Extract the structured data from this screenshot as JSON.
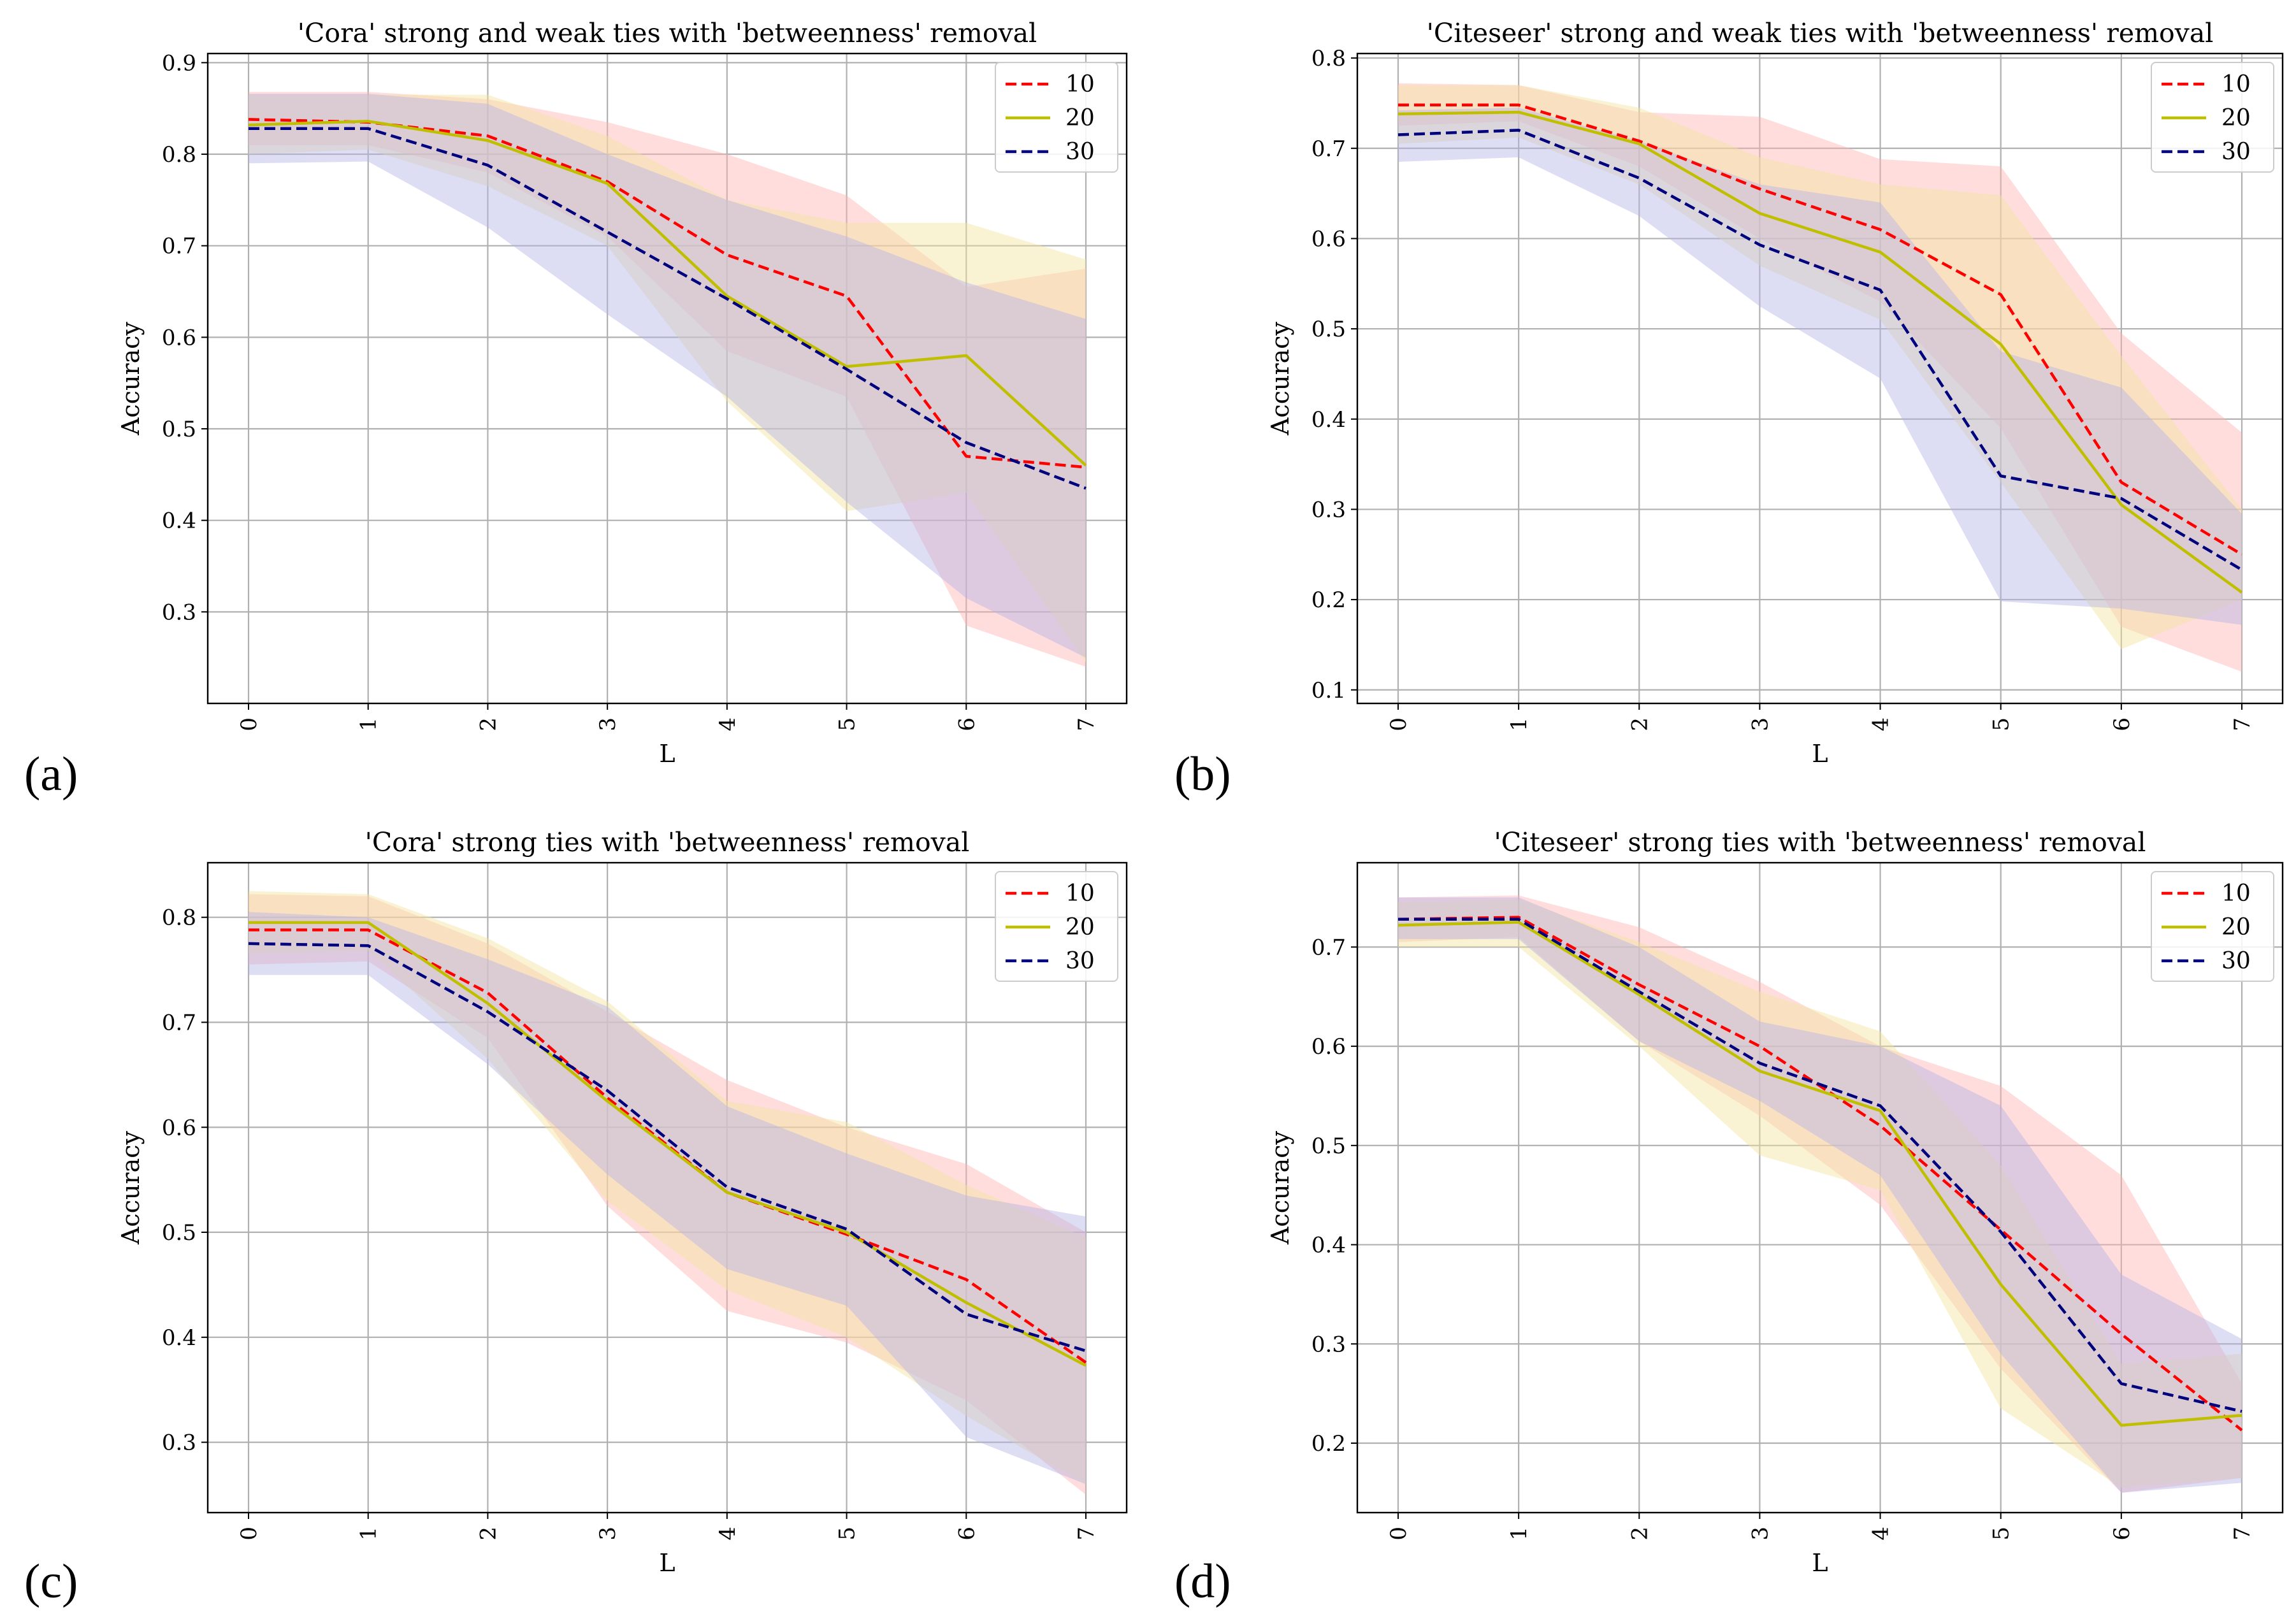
{
  "figure": {
    "panel_labels": [
      "(a)",
      "(b)",
      "(c)",
      "(d)"
    ]
  },
  "colors": {
    "10": "#ff0000",
    "20": "#bfbf00",
    "30": "#00007f",
    "band_10": "#ffb3b3",
    "band_20": "#f2e5a0",
    "band_30": "#b3b3e6"
  },
  "chart_data": [
    {
      "type": "line",
      "title": "'Cora' strong and weak ties with 'betweenness' removal",
      "xlabel": "L",
      "ylabel": "Accuracy",
      "x": [
        0,
        1,
        2,
        3,
        4,
        5,
        6,
        7
      ],
      "xticks": [
        "0",
        "1",
        "2",
        "3",
        "4",
        "5",
        "6",
        "7"
      ],
      "ylim": [
        0.2,
        0.91
      ],
      "yticks": [
        0.3,
        0.4,
        0.5,
        0.6,
        0.7,
        0.8,
        0.9
      ],
      "ytick_labels": [
        "0.3",
        "0.4",
        "0.5",
        "0.6",
        "0.7",
        "0.8",
        "0.9"
      ],
      "legend": "top-right",
      "series": [
        {
          "name": "10",
          "style": "dashed",
          "values": [
            0.838,
            0.835,
            0.82,
            0.77,
            0.69,
            0.645,
            0.47,
            0.458
          ],
          "lower": [
            0.81,
            0.81,
            0.78,
            0.71,
            0.585,
            0.535,
            0.285,
            0.24
          ],
          "upper": [
            0.868,
            0.868,
            0.86,
            0.835,
            0.8,
            0.755,
            0.655,
            0.675
          ]
        },
        {
          "name": "20",
          "style": "solid",
          "values": [
            0.832,
            0.836,
            0.815,
            0.768,
            0.645,
            0.568,
            0.58,
            0.46
          ],
          "lower": [
            0.8,
            0.805,
            0.765,
            0.7,
            0.53,
            0.41,
            0.43,
            0.245
          ],
          "upper": [
            0.865,
            0.865,
            0.865,
            0.82,
            0.75,
            0.725,
            0.725,
            0.685
          ]
        },
        {
          "name": "30",
          "style": "dashed",
          "values": [
            0.828,
            0.828,
            0.788,
            0.715,
            0.642,
            0.565,
            0.485,
            0.435
          ],
          "lower": [
            0.79,
            0.792,
            0.72,
            0.625,
            0.535,
            0.42,
            0.315,
            0.25
          ],
          "upper": [
            0.866,
            0.866,
            0.855,
            0.8,
            0.75,
            0.71,
            0.66,
            0.62
          ]
        }
      ]
    },
    {
      "type": "line",
      "title": "'Citeseer' strong and weak ties with 'betweenness' removal",
      "xlabel": "L",
      "ylabel": "Accuracy",
      "x": [
        0,
        1,
        2,
        3,
        4,
        5,
        6,
        7
      ],
      "xticks": [
        "0",
        "1",
        "2",
        "3",
        "4",
        "5",
        "6",
        "7"
      ],
      "ylim": [
        0.085,
        0.805
      ],
      "yticks": [
        0.1,
        0.2,
        0.3,
        0.4,
        0.5,
        0.6,
        0.7,
        0.8
      ],
      "ytick_labels": [
        "0.1",
        "0.2",
        "0.3",
        "0.4",
        "0.5",
        "0.6",
        "0.7",
        "0.8"
      ],
      "legend": "top-right",
      "series": [
        {
          "name": "10",
          "style": "dashed",
          "values": [
            0.748,
            0.748,
            0.708,
            0.655,
            0.61,
            0.538,
            0.33,
            0.25
          ],
          "lower": [
            0.725,
            0.73,
            0.68,
            0.6,
            0.53,
            0.39,
            0.17,
            0.12
          ],
          "upper": [
            0.772,
            0.77,
            0.74,
            0.735,
            0.688,
            0.68,
            0.495,
            0.385
          ]
        },
        {
          "name": "20",
          "style": "solid",
          "values": [
            0.738,
            0.74,
            0.705,
            0.628,
            0.585,
            0.483,
            0.305,
            0.208
          ],
          "lower": [
            0.705,
            0.712,
            0.66,
            0.57,
            0.51,
            0.33,
            0.145,
            0.2
          ],
          "upper": [
            0.77,
            0.77,
            0.745,
            0.69,
            0.66,
            0.648,
            0.47,
            0.3
          ]
        },
        {
          "name": "30",
          "style": "dashed",
          "values": [
            0.715,
            0.72,
            0.667,
            0.593,
            0.543,
            0.337,
            0.312,
            0.233
          ],
          "lower": [
            0.685,
            0.69,
            0.625,
            0.525,
            0.445,
            0.198,
            0.19,
            0.172
          ],
          "upper": [
            0.742,
            0.745,
            0.708,
            0.66,
            0.64,
            0.475,
            0.435,
            0.295
          ]
        }
      ]
    },
    {
      "type": "line",
      "title": "'Cora' strong ties with 'betweenness' removal",
      "xlabel": "L",
      "ylabel": "Accuracy",
      "x": [
        0,
        1,
        2,
        3,
        4,
        5,
        6,
        7
      ],
      "xticks": [
        "0",
        "1",
        "2",
        "3",
        "4",
        "5",
        "6",
        "7"
      ],
      "ylim": [
        0.233,
        0.852
      ],
      "yticks": [
        0.3,
        0.4,
        0.5,
        0.6,
        0.7,
        0.8
      ],
      "ytick_labels": [
        "0.3",
        "0.4",
        "0.5",
        "0.6",
        "0.7",
        "0.8"
      ],
      "legend": "top-right",
      "series": [
        {
          "name": "10",
          "style": "dashed",
          "values": [
            0.788,
            0.788,
            0.728,
            0.628,
            0.538,
            0.498,
            0.455,
            0.376
          ],
          "lower": [
            0.755,
            0.758,
            0.685,
            0.525,
            0.425,
            0.395,
            0.34,
            0.25
          ],
          "upper": [
            0.822,
            0.82,
            0.775,
            0.71,
            0.645,
            0.6,
            0.565,
            0.5
          ]
        },
        {
          "name": "20",
          "style": "solid",
          "values": [
            0.795,
            0.795,
            0.718,
            0.625,
            0.538,
            0.5,
            0.433,
            0.373
          ],
          "lower": [
            0.765,
            0.768,
            0.665,
            0.53,
            0.445,
            0.4,
            0.325,
            0.26
          ],
          "upper": [
            0.825,
            0.822,
            0.78,
            0.72,
            0.625,
            0.605,
            0.545,
            0.495
          ]
        },
        {
          "name": "30",
          "style": "dashed",
          "values": [
            0.775,
            0.773,
            0.71,
            0.635,
            0.543,
            0.503,
            0.422,
            0.387
          ],
          "lower": [
            0.745,
            0.745,
            0.66,
            0.555,
            0.465,
            0.43,
            0.305,
            0.26
          ],
          "upper": [
            0.805,
            0.8,
            0.76,
            0.715,
            0.62,
            0.575,
            0.535,
            0.515
          ]
        }
      ]
    },
    {
      "type": "line",
      "title": "'Citeseer' strong ties with 'betweenness' removal",
      "xlabel": "L",
      "ylabel": "Accuracy",
      "x": [
        0,
        1,
        2,
        3,
        4,
        5,
        6,
        7
      ],
      "xticks": [
        "0",
        "1",
        "2",
        "3",
        "4",
        "5",
        "6",
        "7"
      ],
      "ylim": [
        0.13,
        0.785
      ],
      "yticks": [
        0.2,
        0.3,
        0.4,
        0.5,
        0.6,
        0.7
      ],
      "ytick_labels": [
        "0.2",
        "0.3",
        "0.4",
        "0.5",
        "0.6",
        "0.7"
      ],
      "legend": "top-right",
      "series": [
        {
          "name": "10",
          "style": "dashed",
          "values": [
            0.728,
            0.73,
            0.662,
            0.6,
            0.52,
            0.415,
            0.31,
            0.213
          ],
          "lower": [
            0.705,
            0.71,
            0.605,
            0.53,
            0.44,
            0.275,
            0.15,
            0.165
          ],
          "upper": [
            0.75,
            0.752,
            0.72,
            0.665,
            0.6,
            0.56,
            0.47,
            0.26
          ]
        },
        {
          "name": "20",
          "style": "solid",
          "values": [
            0.722,
            0.725,
            0.652,
            0.575,
            0.535,
            0.36,
            0.218,
            0.228
          ],
          "lower": [
            0.7,
            0.7,
            0.6,
            0.49,
            0.455,
            0.235,
            0.155,
            0.165
          ],
          "upper": [
            0.745,
            0.748,
            0.705,
            0.655,
            0.615,
            0.48,
            0.28,
            0.29
          ]
        },
        {
          "name": "30",
          "style": "dashed",
          "values": [
            0.728,
            0.728,
            0.655,
            0.583,
            0.54,
            0.413,
            0.26,
            0.232
          ],
          "lower": [
            0.708,
            0.708,
            0.605,
            0.545,
            0.47,
            0.29,
            0.15,
            0.16
          ],
          "upper": [
            0.75,
            0.75,
            0.7,
            0.625,
            0.6,
            0.54,
            0.37,
            0.305
          ]
        }
      ]
    }
  ]
}
